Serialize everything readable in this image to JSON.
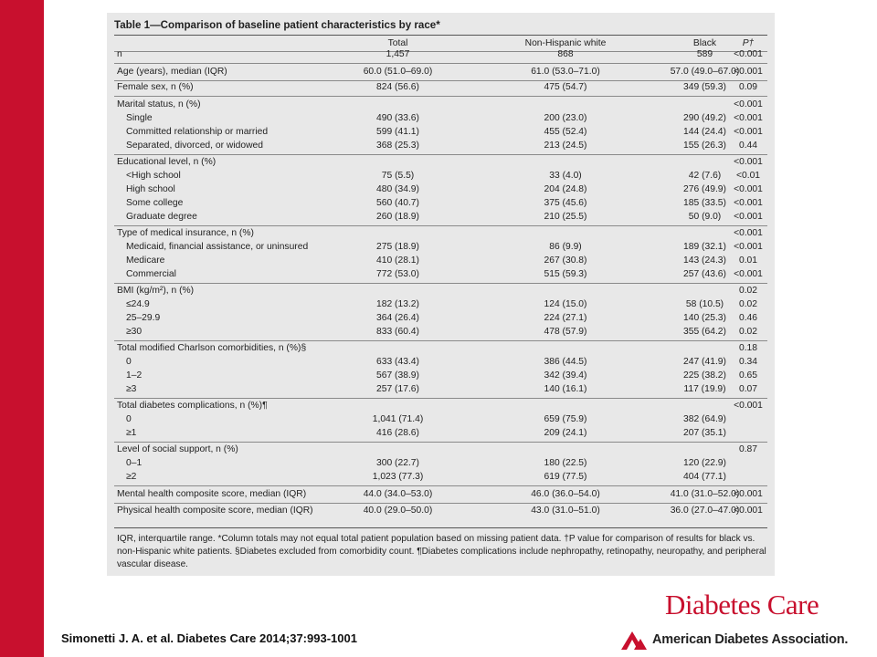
{
  "table_title": "Table 1—Comparison of baseline patient characteristics by race*",
  "headers": [
    "",
    "Total",
    "Non-Hispanic white",
    "Black",
    "P†"
  ],
  "rows": [
    {
      "label": "n",
      "indent": false,
      "total": "1,457",
      "white": "868",
      "black": "589",
      "p": "<0.001"
    },
    {
      "label": "Age (years), median (IQR)",
      "indent": false,
      "total": "60.0 (51.0–69.0)",
      "white": "61.0 (53.0–71.0)",
      "black": "57.0 (49.0–67.0)",
      "p": "<0.001"
    },
    {
      "label": "Female sex, n (%)",
      "indent": false,
      "total": "824 (56.6)",
      "white": "475 (54.7)",
      "black": "349 (59.3)",
      "p": "0.09"
    },
    {
      "label": "Marital status, n (%)",
      "indent": false,
      "total": "",
      "white": "",
      "black": "",
      "p": "<0.001"
    },
    {
      "label": "Single",
      "indent": true,
      "total": "490 (33.6)",
      "white": "200 (23.0)",
      "black": "290 (49.2)",
      "p": "<0.001"
    },
    {
      "label": "Committed relationship or married",
      "indent": true,
      "total": "599 (41.1)",
      "white": "455 (52.4)",
      "black": "144 (24.4)",
      "p": "<0.001"
    },
    {
      "label": "Separated, divorced, or widowed",
      "indent": true,
      "total": "368 (25.3)",
      "white": "213 (24.5)",
      "black": "155 (26.3)",
      "p": "0.44"
    },
    {
      "label": "Educational level, n (%)",
      "indent": false,
      "total": "",
      "white": "",
      "black": "",
      "p": "<0.001"
    },
    {
      "label": "<High school",
      "indent": true,
      "total": "75 (5.5)",
      "white": "33 (4.0)",
      "black": "42 (7.6)",
      "p": "<0.01"
    },
    {
      "label": "High school",
      "indent": true,
      "total": "480 (34.9)",
      "white": "204 (24.8)",
      "black": "276 (49.9)",
      "p": "<0.001"
    },
    {
      "label": "Some college",
      "indent": true,
      "total": "560 (40.7)",
      "white": "375 (45.6)",
      "black": "185 (33.5)",
      "p": "<0.001"
    },
    {
      "label": "Graduate degree",
      "indent": true,
      "total": "260 (18.9)",
      "white": "210 (25.5)",
      "black": "50 (9.0)",
      "p": "<0.001"
    },
    {
      "label": "Type of medical insurance, n (%)",
      "indent": false,
      "total": "",
      "white": "",
      "black": "",
      "p": "<0.001"
    },
    {
      "label": "Medicaid, financial assistance, or uninsured",
      "indent": true,
      "total": "275 (18.9)",
      "white": "86 (9.9)",
      "black": "189 (32.1)",
      "p": "<0.001"
    },
    {
      "label": "Medicare",
      "indent": true,
      "total": "410 (28.1)",
      "white": "267 (30.8)",
      "black": "143 (24.3)",
      "p": "0.01"
    },
    {
      "label": "Commercial",
      "indent": true,
      "total": "772 (53.0)",
      "white": "515 (59.3)",
      "black": "257 (43.6)",
      "p": "<0.001"
    },
    {
      "label": "BMI (kg/m²), n (%)",
      "indent": false,
      "total": "",
      "white": "",
      "black": "",
      "p": "0.02"
    },
    {
      "label": "≤24.9",
      "indent": true,
      "total": "182 (13.2)",
      "white": "124 (15.0)",
      "black": "58 (10.5)",
      "p": "0.02"
    },
    {
      "label": "25–29.9",
      "indent": true,
      "total": "364 (26.4)",
      "white": "224 (27.1)",
      "black": "140 (25.3)",
      "p": "0.46"
    },
    {
      "label": "≥30",
      "indent": true,
      "total": "833 (60.4)",
      "white": "478 (57.9)",
      "black": "355 (64.2)",
      "p": "0.02"
    },
    {
      "label": "Total modified Charlson comorbidities, n (%)§",
      "indent": false,
      "total": "",
      "white": "",
      "black": "",
      "p": "0.18"
    },
    {
      "label": "0",
      "indent": true,
      "total": "633 (43.4)",
      "white": "386 (44.5)",
      "black": "247 (41.9)",
      "p": "0.34"
    },
    {
      "label": "1–2",
      "indent": true,
      "total": "567 (38.9)",
      "white": "342 (39.4)",
      "black": "225 (38.2)",
      "p": "0.65"
    },
    {
      "label": "≥3",
      "indent": true,
      "total": "257 (17.6)",
      "white": "140 (16.1)",
      "black": "117 (19.9)",
      "p": "0.07"
    },
    {
      "label": "Total diabetes complications, n (%)¶",
      "indent": false,
      "total": "",
      "white": "",
      "black": "",
      "p": "<0.001"
    },
    {
      "label": "0",
      "indent": true,
      "total": "1,041 (71.4)",
      "white": "659 (75.9)",
      "black": "382 (64.9)",
      "p": ""
    },
    {
      "label": "≥1",
      "indent": true,
      "total": "416 (28.6)",
      "white": "209 (24.1)",
      "black": "207 (35.1)",
      "p": ""
    },
    {
      "label": "Level of social support, n (%)",
      "indent": false,
      "total": "",
      "white": "",
      "black": "",
      "p": "0.87"
    },
    {
      "label": "0–1",
      "indent": true,
      "total": "300 (22.7)",
      "white": "180 (22.5)",
      "black": "120 (22.9)",
      "p": ""
    },
    {
      "label": "≥2",
      "indent": true,
      "total": "1,023 (77.3)",
      "white": "619 (77.5)",
      "black": "404 (77.1)",
      "p": ""
    },
    {
      "label": "Mental health composite score, median (IQR)",
      "indent": false,
      "total": "44.0 (34.0–53.0)",
      "white": "46.0 (36.0–54.0)",
      "black": "41.0 (31.0–52.0)",
      "p": "<0.001"
    },
    {
      "label": "Physical health composite score, median (IQR)",
      "indent": false,
      "total": "40.0 (29.0–50.0)",
      "white": "43.0 (31.0–51.0)",
      "black": "36.0 (27.0–47.0)",
      "p": "<0.001"
    }
  ],
  "footnote": "IQR, interquartile range. *Column totals may not equal total patient population based on missing patient data. †P value for comparison of results for black vs. non-Hispanic white patients. §Diabetes excluded from comorbidity count. ¶Diabetes complications include nephropathy, retinopathy, neuropathy, and peripheral vascular disease.",
  "citation": "Simonetti J. A. et al. Diabetes Care 2014;37:993-1001",
  "journal": "Diabetes Care",
  "association": "American Diabetes Association.",
  "colors": {
    "accent_red": "#c8102e",
    "panel_gray": "#e8e8e8"
  }
}
